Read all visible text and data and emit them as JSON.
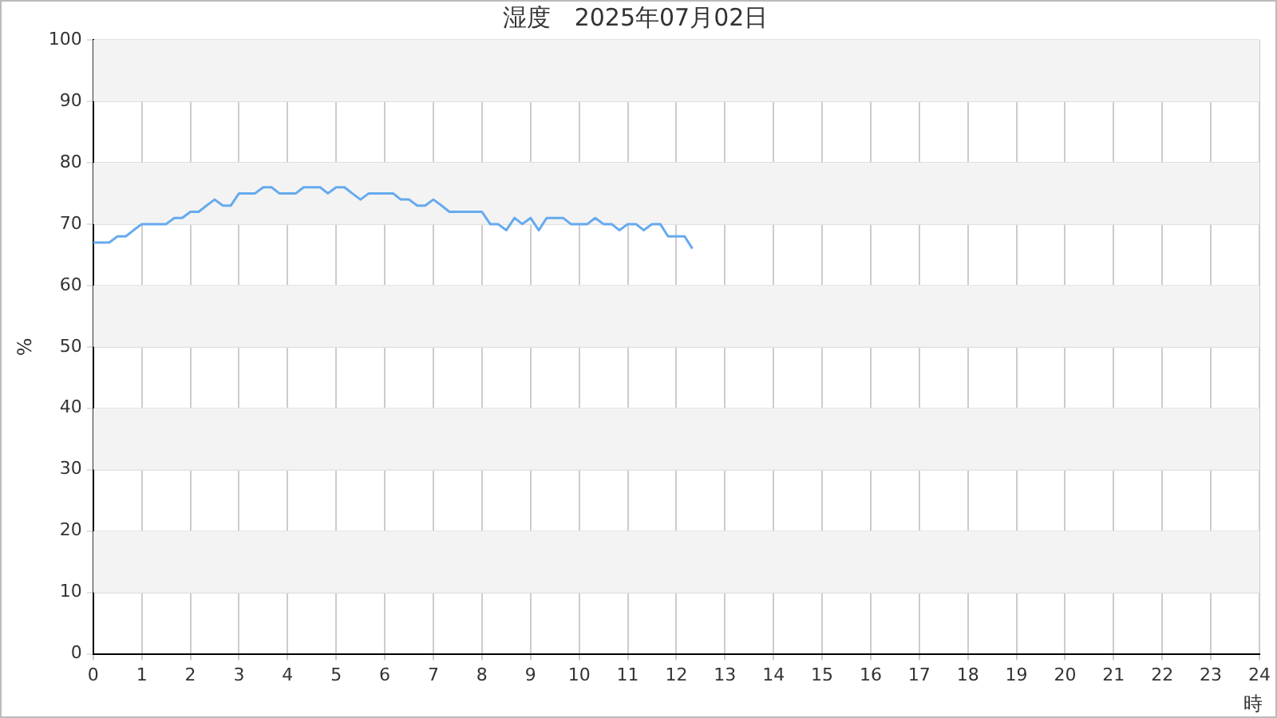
{
  "chart_data": {
    "type": "line",
    "title": "湿度　2025年07月02日",
    "xlabel": "時",
    "ylabel": "%",
    "x": [
      0,
      0.17,
      0.33,
      0.5,
      0.67,
      0.83,
      1,
      1.17,
      1.33,
      1.5,
      1.67,
      1.83,
      2,
      2.17,
      2.33,
      2.5,
      2.67,
      2.83,
      3,
      3.17,
      3.33,
      3.5,
      3.67,
      3.83,
      4,
      4.17,
      4.33,
      4.5,
      4.67,
      4.83,
      5,
      5.17,
      5.33,
      5.5,
      5.67,
      5.83,
      6,
      6.17,
      6.33,
      6.5,
      6.67,
      6.83,
      7,
      7.17,
      7.33,
      7.5,
      7.67,
      7.83,
      8,
      8.17,
      8.33,
      8.5,
      8.67,
      8.83,
      9,
      9.17,
      9.33,
      9.5,
      9.67,
      9.83,
      10,
      10.17,
      10.33,
      10.5,
      10.67,
      10.83,
      11,
      11.17,
      11.33,
      11.5,
      11.67,
      11.83,
      12,
      12.17,
      12.33
    ],
    "series": [
      {
        "color": "#66aaee",
        "values": [
          67,
          67,
          67,
          68,
          68,
          69,
          70,
          70,
          70,
          70,
          71,
          71,
          72,
          72,
          73,
          74,
          73,
          73,
          75,
          75,
          75,
          76,
          76,
          75,
          75,
          75,
          76,
          76,
          76,
          75,
          76,
          76,
          75,
          74,
          75,
          75,
          75,
          75,
          74,
          74,
          73,
          73,
          74,
          73,
          72,
          72,
          72,
          72,
          72,
          70,
          70,
          69,
          71,
          70,
          71,
          69,
          71,
          71,
          71,
          70,
          70,
          70,
          71,
          70,
          70,
          69,
          70,
          70,
          69,
          70,
          70,
          68,
          68,
          68,
          66
        ]
      }
    ],
    "xlim": [
      0,
      24
    ],
    "xticks": [
      0,
      1,
      2,
      3,
      4,
      5,
      6,
      7,
      8,
      9,
      10,
      11,
      12,
      13,
      14,
      15,
      16,
      17,
      18,
      19,
      20,
      21,
      22,
      23,
      24
    ],
    "ylim": [
      0,
      100
    ],
    "yticks": [
      0,
      10,
      20,
      30,
      40,
      50,
      60,
      70,
      80,
      90,
      100
    ],
    "grid": true,
    "legend": false,
    "marker": "none",
    "line_style": "solid"
  }
}
